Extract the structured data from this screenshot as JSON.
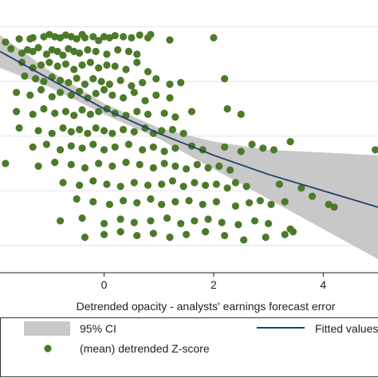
{
  "chart_data": {
    "type": "scatter",
    "title": "",
    "xlabel": "Detrended opacity - analysts' earnings forecast error",
    "ylabel": "",
    "xlim": [
      -1.9,
      5.0
    ],
    "ylim": [
      -3.5,
      1.2
    ],
    "grid": true,
    "x_ticks": [
      0,
      2,
      4
    ],
    "x_tick_labels": [
      "0",
      "2",
      "4"
    ],
    "colors": {
      "points": "#4d7a2a",
      "fit_line": "#1f3f66",
      "ci_band": "#c8c8c8",
      "gridline": "#e6e6e6",
      "axis": "#222222"
    },
    "legend": {
      "placement": "bottom",
      "items": [
        {
          "label": "95% CI",
          "symbol": "band"
        },
        {
          "label": "Fitted values",
          "symbol": "line"
        },
        {
          "label": "(mean) detrended Z-score",
          "symbol": "dot"
        }
      ]
    },
    "fitted": {
      "x": [
        -1.9,
        -1.0,
        0.0,
        1.0,
        2.0,
        3.0,
        4.0,
        5.0
      ],
      "y": [
        0.55,
        0.05,
        -0.5,
        -0.95,
        -1.35,
        -1.7,
        -2.0,
        -2.3
      ]
    },
    "ci": {
      "x": [
        -1.9,
        -1.0,
        0.0,
        1.0,
        2.0,
        3.0,
        4.0,
        5.0
      ],
      "upper": [
        0.85,
        0.2,
        -0.4,
        -0.85,
        -1.1,
        -1.25,
        -1.3,
        -1.35
      ],
      "lower": [
        0.25,
        -0.1,
        -0.6,
        -1.05,
        -1.6,
        -2.15,
        -2.7,
        -3.25
      ]
    },
    "series": [
      {
        "name": "(mean) detrended Z-score",
        "x": [
          -1.8,
          -1.55,
          -1.35,
          -1.3,
          -1.1,
          -1.0,
          -0.9,
          -0.8,
          -0.7,
          -0.6,
          -0.5,
          -0.4,
          -0.35,
          -0.2,
          -0.1,
          0.0,
          0.1,
          0.2,
          0.35,
          0.5,
          0.65,
          0.8,
          0.85,
          1.2,
          2.0,
          -1.7,
          -1.5,
          -1.4,
          -1.3,
          -1.2,
          -1.05,
          -0.95,
          -0.85,
          -0.75,
          -0.65,
          -0.55,
          -0.45,
          -0.3,
          -0.15,
          0.05,
          0.25,
          0.45,
          0.6,
          -1.5,
          -1.3,
          -1.15,
          -1.0,
          -0.85,
          -0.7,
          -0.55,
          -0.4,
          -0.25,
          -0.1,
          0.05,
          0.2,
          0.4,
          0.6,
          0.8,
          -1.45,
          -1.25,
          -1.1,
          -0.95,
          -0.8,
          -0.65,
          -0.5,
          -0.35,
          -0.2,
          -0.05,
          0.1,
          0.3,
          0.5,
          0.7,
          0.95,
          1.2,
          1.4,
          2.2,
          -1.6,
          -1.35,
          -1.15,
          -0.95,
          -0.8,
          -0.6,
          -0.45,
          -0.3,
          -0.15,
          0.0,
          0.15,
          0.35,
          0.55,
          0.75,
          0.95,
          1.2,
          -1.6,
          -1.3,
          -1.1,
          -0.9,
          -0.7,
          -0.55,
          -0.4,
          -0.25,
          -0.1,
          0.05,
          0.2,
          0.4,
          0.6,
          0.8,
          1.1,
          1.3,
          1.6,
          2.25,
          2.5,
          -1.55,
          -1.2,
          -0.95,
          -0.75,
          -0.6,
          -0.45,
          -0.3,
          -0.15,
          0.0,
          0.15,
          0.35,
          0.55,
          0.75,
          0.9,
          1.05,
          1.25,
          1.45,
          -1.3,
          -1.05,
          -0.8,
          -0.6,
          -0.4,
          -0.2,
          0.0,
          0.2,
          0.45,
          0.7,
          0.9,
          1.1,
          1.3,
          1.6,
          1.8,
          2.2,
          2.5,
          2.7,
          2.9,
          3.1,
          3.4,
          -1.8,
          -1.2,
          -0.9,
          -0.6,
          -0.35,
          -0.1,
          0.15,
          0.4,
          0.65,
          0.9,
          1.1,
          1.3,
          1.5,
          1.7,
          1.9,
          2.1,
          2.3,
          -0.75,
          -0.45,
          -0.2,
          0.05,
          0.3,
          0.55,
          0.8,
          1.05,
          1.25,
          1.45,
          1.65,
          1.85,
          2.05,
          2.25,
          2.4,
          2.6,
          3.2,
          -0.5,
          -0.2,
          0.1,
          0.35,
          0.6,
          0.85,
          1.05,
          1.3,
          1.55,
          1.8,
          2.05,
          2.4,
          2.65,
          2.85,
          3.05,
          3.3,
          3.6,
          3.8,
          4.1,
          4.2,
          -0.8,
          -0.4,
          0.0,
          0.3,
          0.55,
          0.85,
          1.15,
          1.4,
          1.65,
          1.9,
          2.15,
          2.45,
          2.75,
          3.0,
          3.4,
          -0.35,
          0.0,
          0.3,
          0.6,
          0.9,
          1.2,
          1.5,
          1.85,
          2.2,
          2.55,
          2.95,
          3.3,
          3.45,
          4.95
        ],
        "y": [
          0.72,
          0.78,
          0.78,
          0.8,
          0.82,
          0.86,
          0.82,
          0.8,
          0.85,
          0.82,
          0.78,
          0.86,
          0.8,
          0.82,
          0.75,
          0.82,
          0.8,
          0.84,
          0.82,
          0.8,
          0.85,
          0.8,
          0.86,
          0.76,
          0.8,
          0.6,
          0.52,
          0.58,
          0.55,
          0.62,
          0.5,
          0.58,
          0.55,
          0.48,
          0.6,
          0.55,
          0.52,
          0.58,
          0.55,
          0.5,
          0.58,
          0.55,
          0.5,
          0.35,
          0.25,
          0.3,
          0.35,
          0.28,
          0.32,
          0.22,
          0.3,
          0.35,
          0.25,
          0.3,
          0.28,
          0.22,
          0.35,
          0.18,
          0.1,
          0.05,
          0.0,
          0.08,
          0.02,
          -0.02,
          0.06,
          -0.05,
          0.05,
          0.0,
          -0.05,
          0.02,
          -0.08,
          -0.02,
          0.05,
          -0.05,
          -0.02,
          0.05,
          -0.2,
          -0.25,
          -0.15,
          -0.28,
          -0.2,
          -0.25,
          -0.18,
          -0.3,
          -0.22,
          -0.15,
          -0.25,
          -0.3,
          -0.2,
          -0.35,
          -0.25,
          -0.3,
          -0.55,
          -0.6,
          -0.5,
          -0.58,
          -0.55,
          -0.62,
          -0.52,
          -0.6,
          -0.55,
          -0.5,
          -0.58,
          -0.62,
          -0.55,
          -0.6,
          -0.58,
          -0.65,
          -0.55,
          -0.5,
          -0.6,
          -0.85,
          -0.9,
          -0.95,
          -0.85,
          -0.92,
          -0.88,
          -0.95,
          -0.85,
          -0.9,
          -0.95,
          -0.88,
          -0.92,
          -0.85,
          -0.95,
          -0.9,
          -0.88,
          -0.95,
          -1.2,
          -1.15,
          -1.25,
          -1.18,
          -1.22,
          -1.15,
          -1.25,
          -1.2,
          -1.15,
          -1.25,
          -1.2,
          -1.28,
          -1.22,
          -1.18,
          -1.25,
          -1.2,
          -1.28,
          -1.15,
          -1.22,
          -1.25,
          -1.1,
          -1.5,
          -1.55,
          -1.48,
          -1.52,
          -1.58,
          -1.5,
          -1.55,
          -1.48,
          -1.52,
          -1.58,
          -1.5,
          -1.55,
          -1.6,
          -1.52,
          -1.58,
          -1.55,
          -1.62,
          -1.85,
          -1.9,
          -1.82,
          -1.88,
          -1.92,
          -1.85,
          -1.9,
          -1.88,
          -1.82,
          -1.92,
          -1.85,
          -1.9,
          -1.88,
          -1.95,
          -1.85,
          -1.92,
          -1.88,
          -2.15,
          -2.2,
          -2.25,
          -2.18,
          -2.22,
          -2.15,
          -2.25,
          -2.2,
          -2.18,
          -2.25,
          -2.2,
          -2.28,
          -2.22,
          -2.18,
          -2.25,
          -2.2,
          -1.95,
          -2.1,
          -2.25,
          -2.3,
          -2.55,
          -2.5,
          -2.6,
          -2.52,
          -2.58,
          -2.55,
          -2.5,
          -2.6,
          -2.55,
          -2.52,
          -2.58,
          -2.62,
          -2.55,
          -2.6,
          -2.7,
          -2.85,
          -2.8,
          -2.75,
          -2.82,
          -2.78,
          -2.85,
          -2.8,
          -2.75,
          -2.82,
          -2.9,
          -2.85,
          -2.8,
          -2.75,
          -1.25
        ]
      }
    ]
  }
}
